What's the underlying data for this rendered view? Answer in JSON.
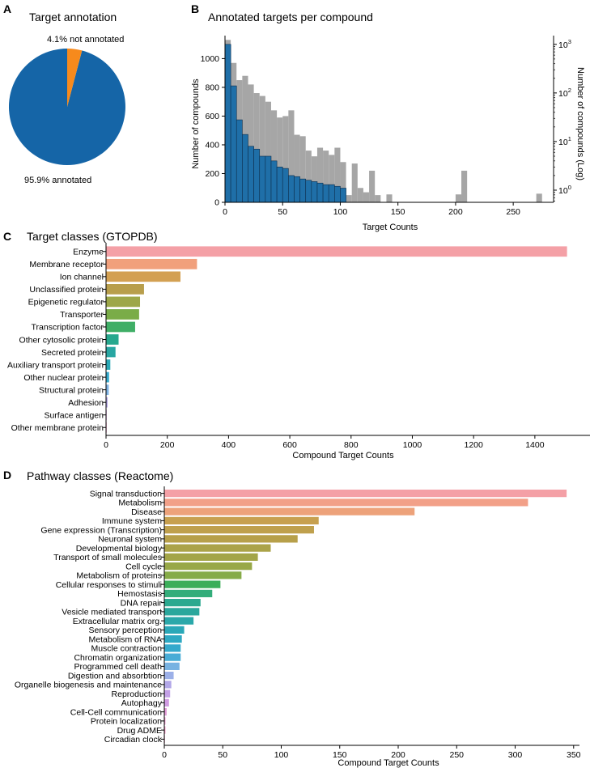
{
  "colors": {
    "pie_annotated": "#1565a7",
    "pie_not_annotated": "#f78a1c",
    "hist_linear": "#a6a6a6",
    "hist_log": "#1f6fa8"
  },
  "chart_data": [
    {
      "panel": "A",
      "type": "pie",
      "title": "Target annotation",
      "slices": [
        {
          "label": "95.9% annotated",
          "value": 95.9
        },
        {
          "label": "4.1% not annotated",
          "value": 4.1
        }
      ]
    },
    {
      "panel": "B",
      "type": "bar",
      "title": "Annotated targets per compound",
      "xlabel": "Target Counts",
      "ylabel": "Number of compounds",
      "ylabel_right": "Number of compounds (Log)",
      "xlim": [
        0,
        285
      ],
      "ylim": [
        0,
        1160
      ],
      "bin_width": 5,
      "xticks": [
        "0",
        "50",
        "100",
        "150",
        "200",
        "250"
      ],
      "yticks": [
        "0",
        "200",
        "400",
        "600",
        "800",
        "1000"
      ],
      "yticks_right": {
        "base": "10",
        "exps": [
          "0",
          "1",
          "2",
          "3"
        ]
      },
      "ylim_right_log10": [
        -0.25,
        3.18
      ],
      "series": [
        {
          "name": "count",
          "scale": "linear",
          "bins": [
            [
              0,
              1130
            ],
            [
              5,
              970
            ],
            [
              10,
              850
            ],
            [
              15,
              880
            ],
            [
              20,
              820
            ],
            [
              25,
              760
            ],
            [
              30,
              740
            ],
            [
              35,
              700
            ],
            [
              40,
              640
            ],
            [
              45,
              590
            ],
            [
              50,
              600
            ],
            [
              55,
              640
            ],
            [
              60,
              470
            ],
            [
              65,
              460
            ],
            [
              70,
              360
            ],
            [
              75,
              320
            ],
            [
              80,
              380
            ],
            [
              85,
              360
            ],
            [
              90,
              330
            ],
            [
              95,
              380
            ],
            [
              100,
              280
            ],
            [
              105,
              50
            ],
            [
              110,
              270
            ],
            [
              115,
              100
            ],
            [
              120,
              70
            ],
            [
              125,
              220
            ],
            [
              130,
              50
            ],
            [
              140,
              55
            ],
            [
              200,
              55
            ],
            [
              205,
              220
            ],
            [
              270,
              60
            ]
          ]
        },
        {
          "name": "count (log)",
          "scale": "log",
          "bins": [
            [
              0,
              1000
            ],
            [
              5,
              140
            ],
            [
              10,
              28
            ],
            [
              15,
              14
            ],
            [
              20,
              8
            ],
            [
              25,
              7
            ],
            [
              30,
              5
            ],
            [
              35,
              5
            ],
            [
              40,
              4
            ],
            [
              45,
              3
            ],
            [
              50,
              2.8
            ],
            [
              55,
              2
            ],
            [
              60,
              1.9
            ],
            [
              65,
              1.7
            ],
            [
              70,
              1.6
            ],
            [
              75,
              1.5
            ],
            [
              80,
              1.4
            ],
            [
              85,
              1.3
            ],
            [
              90,
              1.3
            ],
            [
              95,
              1.2
            ],
            [
              100,
              1.1
            ]
          ]
        }
      ]
    },
    {
      "panel": "C",
      "type": "bar",
      "orientation": "horizontal",
      "title": "Target classes (GTOPDB)",
      "xlabel": "Compound Target Counts",
      "xlim": [
        0,
        1580
      ],
      "xticks": [
        "0",
        "200",
        "400",
        "600",
        "800",
        "1000",
        "1200",
        "1400"
      ],
      "categories": [
        "Enzyme",
        "Membrane receptor",
        "Ion channel",
        "Unclassified protein",
        "Epigenetic regulator",
        "Transporter",
        "Transcription factor",
        "Other cytosolic protein",
        "Secreted protein",
        "Auxiliary transport protein",
        "Other nuclear protein",
        "Structural protein",
        "Adhesion",
        "Surface antigen",
        "Other membrane protein"
      ],
      "values": [
        1505,
        297,
        243,
        124,
        111,
        108,
        95,
        41,
        31,
        14,
        10,
        9,
        5,
        2,
        1
      ],
      "bar_colors": [
        "#f4a0a6",
        "#f1a07c",
        "#d3a052",
        "#b89e4b",
        "#9da748",
        "#7aac48",
        "#3fae66",
        "#27a88e",
        "#28a6a2",
        "#2aa8b6",
        "#36a9cc",
        "#7fb3e4",
        "#b1a3e6",
        "#d596e0",
        "#ee98c2"
      ]
    },
    {
      "panel": "D",
      "type": "bar",
      "orientation": "horizontal",
      "title": "Pathway classes (Reactome)",
      "xlabel": "Compound Target Counts",
      "xlim": [
        0,
        355
      ],
      "xticks": [
        "0",
        "50",
        "100",
        "150",
        "200",
        "250",
        "300",
        "350"
      ],
      "categories": [
        "Signal transduction",
        "Metabolism",
        "Disease",
        "Immune system",
        "Gene expression (Transcription)",
        "Neuronal system",
        "Developmental biology",
        "Transport of small molecules",
        "Cell cycle",
        "Metabolism of proteins",
        "Cellular responses to stimuli",
        "Hemostasis",
        "DNA repair",
        "Vesicle mediated transport",
        "Extracellular matrix org.",
        "Sensory perception",
        "Metabolism of RNA",
        "Muscle contraction",
        "Chromatin organization",
        "Programmed cell death",
        "Digestion and absorbtion",
        "Organelle biogenesis and maintenance",
        "Reproduction",
        "Autophagy",
        "Cell-Cell communication",
        "Protein localization",
        "Drug ADME",
        "Circadian clock"
      ],
      "values": [
        344,
        311,
        214,
        132,
        128,
        114,
        91,
        80,
        75,
        66,
        48,
        41,
        31,
        30,
        25,
        17,
        15,
        14,
        14,
        13,
        8,
        6,
        5,
        4,
        2,
        1,
        1,
        0.5
      ],
      "bar_colors": [
        "#f4a0a6",
        "#f2a088",
        "#eda27a",
        "#c7a04f",
        "#bfa04d",
        "#b7a04a",
        "#aba348",
        "#a3a548",
        "#98a848",
        "#86ab48",
        "#3bae5a",
        "#33ad7a",
        "#2ba98f",
        "#2aa79c",
        "#2aa8aa",
        "#2aa8b8",
        "#2ea9c3",
        "#34a9cc",
        "#48acd6",
        "#78b2e2",
        "#9cb0e8",
        "#b2a7e8",
        "#c29fe6",
        "#d09be2",
        "#e199d6",
        "#ea98cc",
        "#ef98c4",
        "#f19abd"
      ]
    }
  ],
  "panel_letters": {
    "a": "A",
    "b": "B",
    "c": "C",
    "d": "D"
  }
}
